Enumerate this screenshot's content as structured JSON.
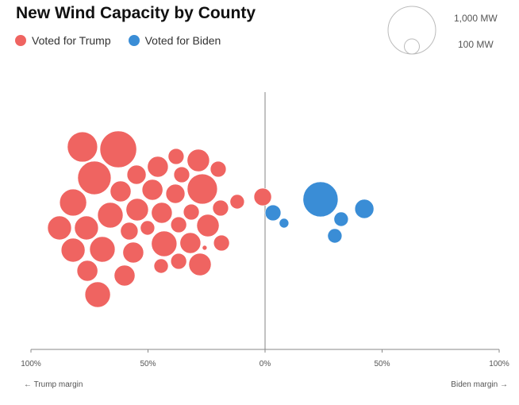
{
  "title": "New Wind Capacity by County",
  "legend": {
    "trump": {
      "label": "Voted for Trump",
      "color": "#ef6461"
    },
    "biden": {
      "label": "Voted for Biden",
      "color": "#3a8dd6"
    }
  },
  "size_legend": {
    "large_label": "1,000 MW",
    "large_value": 1000,
    "small_label": "100 MW",
    "small_value": 100
  },
  "chart_data": {
    "type": "scatter",
    "title": "New Wind Capacity by County",
    "xlabel_left": "← Trump margin",
    "xlabel_right": "Biden margin →",
    "xlim": [
      -100,
      100
    ],
    "x_ticks": [
      {
        "value": -100,
        "label": "100%"
      },
      {
        "value": -50,
        "label": "50%"
      },
      {
        "value": 0,
        "label": "0%"
      },
      {
        "value": 50,
        "label": "50%"
      },
      {
        "value": 100,
        "label": "100%"
      }
    ],
    "size_unit": "MW",
    "series": [
      {
        "name": "Voted for Trump",
        "color": "#ef6461",
        "points": [
          {
            "margin": -78.0,
            "mw": 400
          },
          {
            "margin": -62.7,
            "mw": 590
          },
          {
            "margin": -72.9,
            "mw": 490
          },
          {
            "margin": -54.9,
            "mw": 160
          },
          {
            "margin": -45.8,
            "mw": 190
          },
          {
            "margin": -38.0,
            "mw": 110
          },
          {
            "margin": -28.5,
            "mw": 220
          },
          {
            "margin": -20.0,
            "mw": 110
          },
          {
            "margin": -35.6,
            "mw": 110
          },
          {
            "margin": -61.7,
            "mw": 190
          },
          {
            "margin": -48.1,
            "mw": 190
          },
          {
            "margin": -38.3,
            "mw": 160
          },
          {
            "margin": -26.8,
            "mw": 400
          },
          {
            "margin": -82.0,
            "mw": 320
          },
          {
            "margin": -66.1,
            "mw": 285
          },
          {
            "margin": -54.6,
            "mw": 220
          },
          {
            "margin": -44.1,
            "mw": 190
          },
          {
            "margin": -31.5,
            "mw": 110
          },
          {
            "margin": -19.0,
            "mw": 110
          },
          {
            "margin": -11.9,
            "mw": 90
          },
          {
            "margin": -1.0,
            "mw": 135
          },
          {
            "margin": -87.8,
            "mw": 250
          },
          {
            "margin": -76.3,
            "mw": 250
          },
          {
            "margin": -58.0,
            "mw": 135
          },
          {
            "margin": -50.2,
            "mw": 90
          },
          {
            "margin": -36.9,
            "mw": 110
          },
          {
            "margin": -24.4,
            "mw": 220
          },
          {
            "margin": -82.0,
            "mw": 250
          },
          {
            "margin": -69.5,
            "mw": 285
          },
          {
            "margin": -56.3,
            "mw": 190
          },
          {
            "margin": -43.1,
            "mw": 285
          },
          {
            "margin": -31.9,
            "mw": 190
          },
          {
            "margin": -25.8,
            "mw": 10
          },
          {
            "margin": -18.6,
            "mw": 110
          },
          {
            "margin": -75.9,
            "mw": 190
          },
          {
            "margin": -60.0,
            "mw": 190
          },
          {
            "margin": -44.4,
            "mw": 90
          },
          {
            "margin": -36.9,
            "mw": 110
          },
          {
            "margin": -27.8,
            "mw": 220
          },
          {
            "margin": -71.5,
            "mw": 285
          }
        ]
      },
      {
        "name": "Voted for Biden",
        "color": "#3a8dd6",
        "points": [
          {
            "margin": 23.7,
            "mw": 540
          },
          {
            "margin": 3.4,
            "mw": 110
          },
          {
            "margin": 8.1,
            "mw": 40
          },
          {
            "margin": 32.5,
            "mw": 90
          },
          {
            "margin": 42.4,
            "mw": 160
          },
          {
            "margin": 29.8,
            "mw": 90
          }
        ]
      }
    ]
  }
}
